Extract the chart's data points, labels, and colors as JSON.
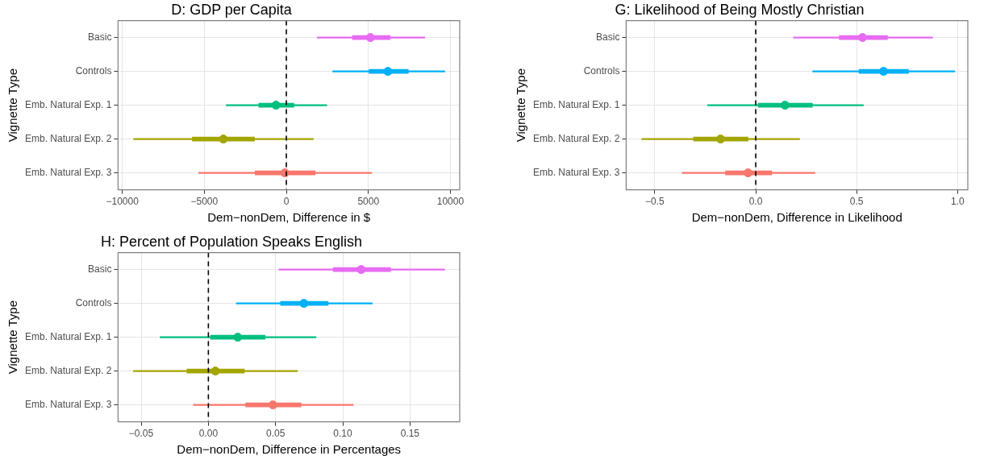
{
  "chart_data": [
    {
      "type": "scatter",
      "orientation": "horizontal",
      "title": "D: GDP per Capita",
      "xlabel": "Dem−nonDem, Difference in $",
      "ylabel": "Vignette Type",
      "categories": [
        "Basic",
        "Controls",
        "Emb. Natural Exp. 1",
        "Emb. Natural Exp. 2",
        "Emb. Natural Exp. 3"
      ],
      "xlim": [
        -10260,
        10570
      ],
      "xticks": [
        {
          "value": -10000,
          "label": "−10000"
        },
        {
          "value": -5000,
          "label": "−5000"
        },
        0,
        5000,
        10000
      ],
      "grid": true,
      "legend": false,
      "ref_lines": [
        {
          "axis": "x",
          "value": 0,
          "line_style": "dashed",
          "color": "#000000"
        }
      ],
      "series": [
        {
          "type": "bar",
          "colors": [
            "#e76bf3",
            "#00b0f6",
            "#00bf7d",
            "#a3a500",
            "#f8766d"
          ],
          "base": [
            4030,
            5045,
            -1680,
            -5730,
            -1900
          ],
          "values": [
            2290,
            2390,
            2140,
            3790,
            3660
          ]
        },
        {
          "marker": "circle",
          "colors": [
            "#e76bf3",
            "#00b0f6",
            "#00bf7d",
            "#a3a500",
            "#f8766d"
          ],
          "values": [
            5120,
            6190,
            -630,
            -3840,
            -90
          ],
          "errors": [
            [
              1870,
              8460
            ],
            [
              2810,
              9680
            ],
            [
              -3680,
              2480
            ],
            [
              -9330,
              1660
            ],
            [
              -5360,
              5210
            ]
          ]
        }
      ]
    },
    {
      "type": "scatter",
      "orientation": "horizontal",
      "title": "G: Likelihood of Being Mostly Christian",
      "xlabel": "Dem−nonDem, Difference in Likelihood",
      "ylabel": "Vignette Type",
      "categories": [
        "Basic",
        "Controls",
        "Emb. Natural Exp. 1",
        "Emb. Natural Exp. 2",
        "Emb. Natural Exp. 3"
      ],
      "xlim": [
        -0.642,
        1.051
      ],
      "xticks": [
        {
          "value": -0.5,
          "label": "−0.5"
        },
        {
          "value": 0,
          "label": "0.0"
        },
        0.5,
        {
          "value": 1,
          "label": "1.0"
        }
      ],
      "grid": true,
      "legend": false,
      "ref_lines": [
        {
          "axis": "x",
          "value": 0,
          "line_style": "dashed",
          "color": "#000000"
        }
      ],
      "series": [
        {
          "type": "bar",
          "colors": [
            "#e76bf3",
            "#00b0f6",
            "#00bf7d",
            "#a3a500",
            "#f8766d"
          ],
          "base": [
            0.414,
            0.512,
            0.012,
            -0.308,
            -0.15
          ],
          "values": [
            0.239,
            0.245,
            0.269,
            0.27,
            0.229
          ]
        },
        {
          "marker": "circle",
          "colors": [
            "#e76bf3",
            "#00b0f6",
            "#00bf7d",
            "#a3a500",
            "#f8766d"
          ],
          "values": [
            0.529,
            0.633,
            0.145,
            -0.174,
            -0.038
          ],
          "errors": [
            [
              0.186,
              0.878
            ],
            [
              0.281,
              0.988
            ],
            [
              -0.24,
              0.535
            ],
            [
              -0.566,
              0.219
            ],
            [
              -0.366,
              0.295
            ]
          ]
        }
      ]
    },
    {
      "type": "scatter",
      "orientation": "horizontal",
      "title": "H: Percent of Population Speaks English",
      "xlabel": "Dem−nonDem, Difference in Percentages",
      "ylabel": "Vignette Type",
      "categories": [
        "Basic",
        "Controls",
        "Emb. Natural Exp. 1",
        "Emb. Natural Exp. 2",
        "Emb. Natural Exp. 3"
      ],
      "xlim": [
        -0.0672,
        0.187
      ],
      "xticks": [
        {
          "value": -0.05,
          "label": "−0.05"
        },
        {
          "value": 0,
          "label": "0.00"
        },
        0.05,
        {
          "value": 0.1,
          "label": "0.10"
        },
        0.15
      ],
      "grid": true,
      "legend": false,
      "ref_lines": [
        {
          "axis": "x",
          "value": 0,
          "line_style": "dashed",
          "color": "#000000"
        }
      ],
      "series": [
        {
          "type": "bar",
          "colors": [
            "#e76bf3",
            "#00b0f6",
            "#00bf7d",
            "#a3a500",
            "#f8766d"
          ],
          "base": [
            0.0929,
            0.0537,
            0.0016,
            -0.016,
            0.0277
          ],
          "values": [
            0.0427,
            0.0354,
            0.0406,
            0.0428,
            0.0413
          ]
        },
        {
          "marker": "circle",
          "colors": [
            "#e76bf3",
            "#00b0f6",
            "#00bf7d",
            "#a3a500",
            "#f8766d"
          ],
          "values": [
            0.1137,
            0.0711,
            0.0219,
            0.0052,
            0.048
          ],
          "errors": [
            [
              0.0523,
              0.176
            ],
            [
              0.0205,
              0.1222
            ],
            [
              -0.0361,
              0.0803
            ],
            [
              -0.056,
              0.0665
            ],
            [
              -0.0113,
              0.108
            ]
          ]
        }
      ]
    }
  ]
}
